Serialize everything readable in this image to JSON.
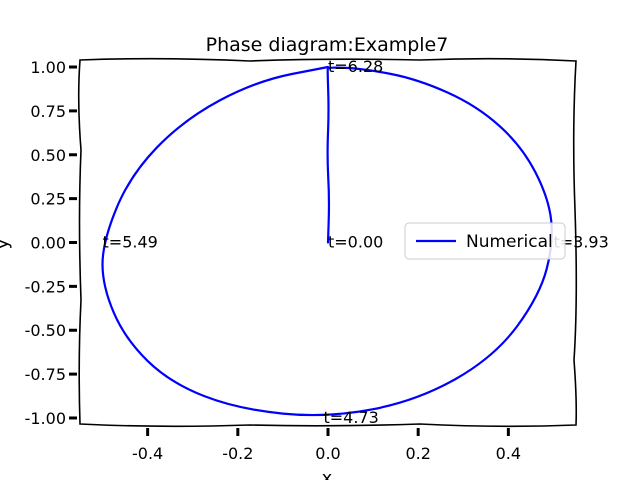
{
  "chart_data": {
    "type": "line",
    "title": "Phase diagram:Example7",
    "xlabel": "x",
    "ylabel": "y",
    "xlim": [
      -0.55,
      0.55
    ],
    "ylim": [
      -1.04,
      1.04
    ],
    "x_ticks": [
      -0.4,
      -0.2,
      0.0,
      0.2,
      0.4
    ],
    "x_tick_labels": [
      "-0.4",
      "-0.2",
      "0.0",
      "0.2",
      "0.4"
    ],
    "y_ticks": [
      1.0,
      0.75,
      0.5,
      0.25,
      0.0,
      -0.25,
      -0.5,
      -0.75,
      -1.0
    ],
    "y_tick_labels": [
      "1.00",
      "0.75",
      "0.50",
      "0.25",
      "0.00",
      "-0.25",
      "-0.50",
      "-0.75",
      "-1.00"
    ],
    "legend": {
      "placement": "right",
      "entries": [
        "Numerical"
      ]
    },
    "series": [
      {
        "name": "Numerical",
        "color": "#0000ff",
        "x": [
          0.0,
          0.003,
          -0.002,
          0.002,
          -0.001,
          0.0,
          0.08,
          0.2,
          0.33,
          0.43,
          0.49,
          0.5,
          0.47,
          0.37,
          0.2,
          0.0,
          -0.2,
          -0.35,
          -0.45,
          -0.5,
          -0.5,
          -0.44,
          -0.32,
          -0.16,
          0.0
        ],
        "y": [
          0.0,
          0.25,
          0.5,
          0.75,
          0.98,
          1.0,
          0.99,
          0.93,
          0.78,
          0.55,
          0.25,
          0.0,
          -0.3,
          -0.65,
          -0.9,
          -1.0,
          -0.95,
          -0.8,
          -0.55,
          -0.25,
          0.0,
          0.38,
          0.7,
          0.92,
          1.0
        ]
      }
    ],
    "annotations": [
      {
        "text": "t=0.00",
        "x": 0.0,
        "y": 0.0
      },
      {
        "text": "t=6.28",
        "x": 0.0,
        "y": 1.0
      },
      {
        "text": "t=5.49",
        "x": -0.5,
        "y": 0.0
      },
      {
        "text": "t=4.73",
        "x": -0.01,
        "y": -1.0
      },
      {
        "text": "t=3.93",
        "x": 0.5,
        "y": 0.0
      }
    ]
  }
}
